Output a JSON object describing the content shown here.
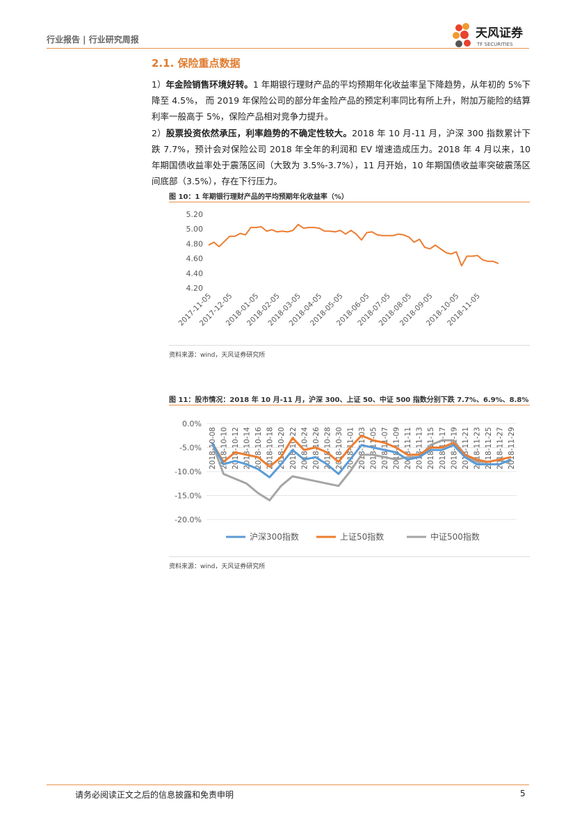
{
  "header": {
    "left": "行业报告 | 行业研究周报",
    "logo": "天风证券",
    "logo_sub": "TF SECURITIES"
  },
  "section_title": "2.1. 保险重点数据",
  "paragraphs": [
    {
      "num": "1）",
      "bold": "年金险销售环境好转。",
      "text": "1 年期银行理财产品的平均预期年化收益率呈下降趋势，从年初的 5%下降至 4.5%， 而 2019 年保险公司的部分年金险产品的预定利率同比有所上升，附加万能险的结算利率一般高于 5%，保险产品相对竞争力提升。"
    },
    {
      "num": "2）",
      "bold": "股票投资依然承压，利率趋势的不确定性较大。",
      "text": "2018 年 10 月-11 月，沪深 300 指数累计下跌 7.7%，预计会对保险公司 2018 年全年的利润和 EV 增速造成压力。2018 年 4 月以来，10 年期国债收益率处于震荡区间（大致为 3.5%-3.7%），11 月开始，10 年期国债收益率突破震荡区间底部（3.5%），存在下行压力。"
    }
  ],
  "figures": [
    {
      "caption": "图 10：1 年期银行理财产品的平均预期年化收益率（%）",
      "source": "资料来源：wind，天风证券研究所"
    },
    {
      "caption": "图 11：股市情况：2018 年 10 月-11 月，沪深 300、上证 50、中证 500 指数分别下跌 7.7%、6.9%、8.8%",
      "source": "资料来源：wind，天风证券研究所"
    }
  ],
  "footer": {
    "text": "请务必阅读正文之后的信息披露和免责申明",
    "page": "5"
  },
  "chart_data": [
    {
      "type": "line",
      "color": "#ED7D31",
      "grid": false,
      "categories": [
        "2017-11-05",
        null,
        null,
        null,
        "2017-12-05",
        null,
        null,
        null,
        null,
        "2018-01-05",
        null,
        null,
        null,
        "2018-02-05",
        null,
        null,
        null,
        "2018-03-05",
        null,
        null,
        null,
        "2018-04-05",
        null,
        null,
        null,
        "2018-05-05",
        null,
        null,
        null,
        null,
        "2018-06-05",
        null,
        null,
        null,
        "2018-07-05",
        null,
        null,
        null,
        "2018-08-05",
        null,
        null,
        null,
        "2018-09-05",
        null,
        null,
        null,
        null,
        "2018-10-05",
        null,
        null,
        null,
        "2018-11-05",
        null,
        null,
        null,
        null
      ],
      "values": [
        4.78,
        4.82,
        4.76,
        4.83,
        4.9,
        4.9,
        4.94,
        4.92,
        5.02,
        5.02,
        5.03,
        4.97,
        4.99,
        4.96,
        4.97,
        4.96,
        4.98,
        5.06,
        5.01,
        5.02,
        5.02,
        5.01,
        4.97,
        4.97,
        4.96,
        4.98,
        4.93,
        4.98,
        4.93,
        4.85,
        4.95,
        4.96,
        4.92,
        4.91,
        4.91,
        4.91,
        4.93,
        4.92,
        4.89,
        4.82,
        4.86,
        4.75,
        4.73,
        4.78,
        4.73,
        4.68,
        4.66,
        4.69,
        4.5,
        4.63,
        4.63,
        4.64,
        4.58,
        4.56,
        4.56,
        4.53
      ],
      "ylim": [
        4.2,
        5.2
      ],
      "yticks": [
        {
          "value": 4.2,
          "label": "4.20"
        },
        {
          "value": 4.4,
          "label": "4.40"
        },
        {
          "value": 4.6,
          "label": "4.60"
        },
        {
          "value": 4.8,
          "label": "4.80"
        },
        {
          "value": 5.0,
          "label": "5.00"
        },
        {
          "value": 5.2,
          "label": "5.20"
        }
      ]
    },
    {
      "type": "line",
      "grid": true,
      "legend": "bottom",
      "categories": [
        "2018-10-08",
        "2018-10-10",
        "2018-10-12",
        "2018-10-14",
        "2018-10-16",
        "2018-10-18",
        "2018-10-20",
        "2018-10-22",
        "2018-10-24",
        "2018-10-26",
        "2018-10-28",
        "2018-10-30",
        "2018-11-01",
        "2018-11-03",
        "2018-11-05",
        "2018-11-07",
        "2018-11-09",
        "2018-11-11",
        "2018-11-13",
        "2018-11-15",
        "2018-11-17",
        "2018-11-19",
        "2018-11-21",
        "2018-11-23",
        "2018-11-25",
        "2018-11-27",
        "2018-11-29"
      ],
      "series": [
        {
          "name": "沪深300指数",
          "color": "#5B9BD5",
          "values": [
            -4,
            -8.5,
            -7.8,
            -8.5,
            -9.5,
            -11.2,
            -8.5,
            -5.5,
            -7.5,
            -7,
            -8.5,
            -10.5,
            -7.5,
            -4.5,
            -5,
            -5.5,
            -6,
            -7.5,
            -7,
            -5.5,
            -5.5,
            -4.5,
            -7,
            -8.5,
            -8.5,
            -8.5,
            -7.5
          ]
        },
        {
          "name": "上证50指数",
          "color": "#ED7D31",
          "values": [
            -4,
            -8,
            -6,
            -6.5,
            -7,
            -9,
            -7,
            -3,
            -5.5,
            -5,
            -6,
            -8,
            -5,
            -2.5,
            -3.5,
            -4,
            -5,
            -6.5,
            -6.5,
            -5,
            -5,
            -4,
            -6.5,
            -7.5,
            -8,
            -7.5,
            -7
          ]
        },
        {
          "name": "中证500指数",
          "color": "#A5A5A5",
          "values": [
            -4,
            -10.5,
            -11.5,
            -12.5,
            -14.5,
            -16,
            -13,
            -11,
            -11.5,
            -12,
            -12.5,
            -13,
            -10,
            -6.5,
            -6.5,
            -7,
            -7.5,
            -7,
            -7,
            -4.5,
            -3.5,
            -3.5,
            -6.5,
            -8,
            -8,
            -7.5,
            -8.5
          ]
        }
      ],
      "ylim": [
        -20,
        0
      ],
      "yticks": [
        {
          "value": -20,
          "label": "-20.0%"
        },
        {
          "value": -15,
          "label": "-15.0%"
        },
        {
          "value": -10,
          "label": "-10.0%"
        },
        {
          "value": -5,
          "label": "-5.0%"
        },
        {
          "value": 0,
          "label": "0.0%"
        }
      ]
    }
  ]
}
